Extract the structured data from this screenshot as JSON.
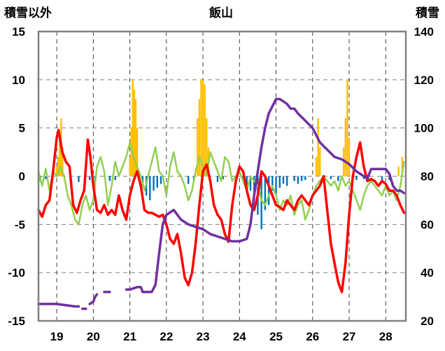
{
  "chart_data": {
    "type": "line",
    "title": "飯山",
    "ylabel_left": "積雪以外",
    "ylabel_right": "積雪",
    "x_categories": [
      "19",
      "20",
      "21",
      "22",
      "23",
      "24",
      "25",
      "26",
      "27",
      "28"
    ],
    "x_range": [
      18.5,
      28.55
    ],
    "ylim_left": [
      -15,
      15
    ],
    "yticks_left": [
      "15",
      "10",
      "5",
      "0",
      "-5",
      "-10",
      "-15"
    ],
    "ylim_right": [
      20,
      140
    ],
    "yticks_right": [
      "140",
      "120",
      "100",
      "80",
      "60",
      "40",
      "20"
    ],
    "grid": "dashed vertical at day boundaries, dashed horizontal",
    "legend": "none",
    "colors": {
      "temperature": "#ff0000",
      "snow_depth": "#7030a0",
      "green_series": "#92d050",
      "snowfall_bars": "#ffc000",
      "negative_bars": "#0070c0"
    },
    "series": [
      {
        "axis": "left",
        "color": "#ff0000",
        "x": [
          18.5,
          18.6,
          18.7,
          18.8,
          18.9,
          19.0,
          19.05,
          19.15,
          19.25,
          19.35,
          19.45,
          19.55,
          19.65,
          19.75,
          19.85,
          19.92,
          20.0,
          20.1,
          20.2,
          20.3,
          20.4,
          20.5,
          20.6,
          20.7,
          20.8,
          20.9,
          21.0,
          21.1,
          21.2,
          21.3,
          21.4,
          21.5,
          21.6,
          21.7,
          21.8,
          21.9,
          22.0,
          22.1,
          22.2,
          22.3,
          22.4,
          22.5,
          22.6,
          22.7,
          22.8,
          22.9,
          23.0,
          23.1,
          23.2,
          23.3,
          23.4,
          23.5,
          23.6,
          23.7,
          23.8,
          23.9,
          24.0,
          24.1,
          24.2,
          24.3,
          24.4,
          24.5,
          24.6,
          24.7,
          24.8,
          24.9,
          25.0,
          25.1,
          25.2,
          25.3,
          25.4,
          25.5,
          25.6,
          25.7,
          25.8,
          25.9,
          26.0,
          26.1,
          26.2,
          26.3,
          26.4,
          26.5,
          26.6,
          26.7,
          26.8,
          26.9,
          27.0,
          27.1,
          27.2,
          27.3,
          27.4,
          27.5,
          27.6,
          27.7,
          27.8,
          27.9,
          28.0,
          28.1,
          28.2,
          28.3,
          28.4,
          28.5
        ],
        "y": [
          -3.5,
          -4.2,
          -3.0,
          -2.5,
          0.5,
          4.0,
          4.8,
          2.5,
          1.5,
          1.0,
          -3.0,
          -3.8,
          -2.5,
          -1.5,
          3.8,
          2.0,
          -1.0,
          -3.5,
          -3.8,
          -3.0,
          -4.0,
          -3.5,
          -4.0,
          -2.0,
          -3.5,
          -4.5,
          -2.0,
          -0.5,
          0.5,
          -1.0,
          -3.5,
          -3.8,
          -3.8,
          -4.0,
          -4.2,
          -4.0,
          -5.0,
          -6.5,
          -7.0,
          -6.0,
          -8.0,
          -10.5,
          -11.3,
          -10.0,
          -7.0,
          -3.0,
          0.5,
          1.2,
          -0.5,
          -3.0,
          -4.0,
          -4.5,
          -6.0,
          -6.8,
          -3.0,
          -0.5,
          1.0,
          0.5,
          -1.5,
          -3.0,
          -3.5,
          -2.0,
          0.5,
          0.0,
          -1.0,
          -2.0,
          -3.0,
          -3.2,
          -3.5,
          -2.5,
          -3.0,
          -3.5,
          -2.5,
          -2.0,
          -2.5,
          -3.0,
          -2.0,
          -1.5,
          -1.0,
          0.0,
          -3.5,
          -7.0,
          -9.0,
          -11.0,
          -12.0,
          -9.0,
          -4.0,
          0.0,
          2.0,
          3.5,
          1.0,
          -0.5,
          -0.3,
          -0.5,
          -1.0,
          -0.5,
          -0.8,
          -1.5,
          -1.5,
          -2.0,
          -3.0,
          -3.8
        ]
      },
      {
        "axis": "right",
        "color": "#7030a0",
        "x": [
          18.5,
          19.0,
          19.5,
          19.6,
          19.65,
          19.7,
          19.8,
          19.85,
          19.9,
          20.0,
          20.05,
          20.1,
          20.2,
          20.3,
          20.45,
          20.5,
          20.9,
          21.0,
          21.2,
          21.3,
          21.35,
          21.5,
          21.6,
          21.7,
          21.8,
          21.9,
          22.0,
          22.2,
          22.4,
          22.6,
          22.8,
          23.0,
          23.2,
          23.4,
          23.6,
          23.8,
          24.0,
          24.2,
          24.3,
          24.4,
          24.5,
          24.6,
          24.7,
          24.8,
          24.9,
          25.0,
          25.1,
          25.2,
          25.3,
          25.4,
          25.5,
          25.6,
          25.8,
          26.0,
          26.2,
          26.4,
          26.6,
          26.8,
          27.0,
          27.2,
          27.4,
          27.5,
          27.6,
          27.8,
          28.0,
          28.1,
          28.2,
          28.3,
          28.4,
          28.5
        ],
        "y": [
          27,
          27,
          26,
          26,
          null,
          25,
          25,
          null,
          27,
          28,
          30,
          31,
          null,
          32,
          32,
          null,
          33,
          33,
          34,
          34,
          32,
          32,
          32,
          35,
          48,
          60,
          64,
          66,
          62,
          60,
          59,
          58,
          56,
          55,
          54,
          53,
          53,
          54,
          60,
          72,
          82,
          92,
          100,
          106,
          109,
          112,
          112,
          111,
          110,
          108,
          108,
          106,
          103,
          100,
          94,
          91,
          88,
          87,
          85,
          82,
          80,
          79,
          83,
          83,
          83,
          81,
          76,
          74,
          74,
          73
        ]
      },
      {
        "axis": "left",
        "color": "#92d050",
        "x": [
          18.5,
          18.6,
          18.7,
          18.8,
          18.9,
          19.0,
          19.1,
          19.2,
          19.3,
          19.4,
          19.5,
          19.6,
          19.7,
          19.8,
          19.9,
          20.0,
          20.1,
          20.2,
          20.3,
          20.4,
          20.5,
          20.6,
          20.7,
          20.8,
          20.9,
          21.0,
          21.1,
          21.2,
          21.3,
          21.4,
          21.5,
          21.6,
          21.7,
          21.8,
          21.9,
          22.0,
          22.1,
          22.2,
          22.3,
          22.4,
          22.5,
          22.6,
          22.7,
          22.8,
          22.9,
          23.0,
          23.1,
          23.2,
          23.3,
          23.4,
          23.5,
          23.6,
          23.7,
          23.8,
          23.9,
          24.0,
          24.1,
          24.2,
          24.3,
          24.4,
          24.5,
          24.6,
          24.7,
          24.8,
          24.9,
          25.0,
          25.1,
          25.2,
          25.3,
          25.4,
          25.5,
          25.6,
          25.7,
          25.8,
          25.9,
          26.0,
          26.1,
          26.2,
          26.3,
          26.4,
          26.5,
          26.6,
          26.7,
          26.8,
          26.9,
          27.0,
          27.1,
          27.2,
          27.3,
          27.4,
          27.5,
          27.6,
          27.7,
          27.8,
          27.9,
          28.0,
          28.1,
          28.2,
          28.3,
          28.4,
          28.5
        ],
        "y": [
          0.5,
          -1.0,
          0.8,
          -1.5,
          0.5,
          0.0,
          1.0,
          0.0,
          -2.0,
          -3.0,
          -4.5,
          -5.0,
          -3.0,
          -2.0,
          -3.5,
          -2.5,
          1.0,
          2.0,
          0.5,
          -3.0,
          -1.0,
          1.5,
          0.0,
          1.0,
          2.0,
          3.5,
          2.0,
          1.0,
          0.0,
          -1.5,
          0.0,
          1.5,
          3.0,
          0.5,
          0.0,
          -2.0,
          1.0,
          2.5,
          0.5,
          0.0,
          -1.0,
          -2.5,
          -1.5,
          0.5,
          2.0,
          1.0,
          0.0,
          2.5,
          1.5,
          0.5,
          -0.5,
          2.0,
          1.5,
          -0.5,
          0.0,
          0.5,
          -0.5,
          -1.5,
          0.0,
          -0.5,
          -1.0,
          -2.5,
          -3.0,
          -2.0,
          -1.0,
          -2.0,
          -3.5,
          -2.5,
          -3.0,
          -2.0,
          -4.0,
          -3.0,
          -2.5,
          -4.5,
          -3.5,
          -2.0,
          -1.0,
          -0.5,
          0.0,
          -0.5,
          -1.0,
          -0.5,
          -1.5,
          0.0,
          -1.0,
          -0.5,
          -1.5,
          -2.5,
          -3.5,
          -2.0,
          -1.0,
          -0.5,
          -1.0,
          -1.5,
          -2.0,
          -1.0,
          -2.0,
          -1.5,
          -2.5,
          -1.0,
          1.5
        ]
      }
    ],
    "bars": {
      "axis": "left",
      "positive": {
        "color": "#ffc000",
        "x": [
          19.0,
          19.04,
          19.08,
          19.12,
          19.16,
          21.0,
          21.04,
          21.08,
          21.12,
          21.16,
          21.2,
          22.85,
          22.9,
          22.95,
          23.0,
          23.05,
          23.1,
          23.15,
          26.1,
          26.15,
          26.2,
          26.85,
          26.9,
          26.95,
          27.0,
          28.35,
          28.45
        ],
        "values": [
          1.0,
          2.0,
          4.5,
          6.0,
          3.0,
          2.0,
          5.0,
          10.0,
          9.0,
          8.0,
          5.0,
          6.0,
          8.0,
          10.0,
          10.0,
          9.5,
          6.0,
          3.0,
          2.0,
          6.0,
          3.0,
          3.0,
          6.0,
          10.0,
          4.0,
          1.0,
          2.0
        ]
      },
      "negative": {
        "color": "#0070c0",
        "x": [
          18.55,
          18.7,
          19.6,
          19.9,
          20.05,
          20.45,
          20.6,
          21.25,
          21.35,
          21.45,
          21.55,
          21.65,
          21.75,
          21.85,
          22.6,
          22.75,
          23.4,
          23.55,
          24.1,
          24.2,
          24.3,
          24.4,
          24.5,
          24.6,
          24.7,
          24.8,
          24.9,
          25.0,
          25.1,
          25.2,
          25.3,
          25.5,
          25.6,
          25.7,
          25.8,
          26.3,
          26.5,
          26.7,
          27.2,
          27.4,
          27.9,
          28.1
        ],
        "values": [
          -0.5,
          -0.3,
          -0.6,
          -0.4,
          -1.0,
          -0.5,
          -0.4,
          -0.5,
          -1.0,
          -2.0,
          -2.5,
          -1.5,
          -1.2,
          -0.8,
          -0.8,
          -0.5,
          -0.6,
          -0.3,
          -0.5,
          -1.0,
          -1.5,
          -2.5,
          -4.0,
          -5.5,
          -3.5,
          -3.0,
          -1.5,
          -2.0,
          -1.2,
          -0.8,
          -1.0,
          -0.5,
          -0.8,
          -0.5,
          -0.4,
          -0.6,
          -0.3,
          -0.5,
          -0.4,
          -0.3,
          -0.5,
          -0.4
        ]
      }
    }
  }
}
